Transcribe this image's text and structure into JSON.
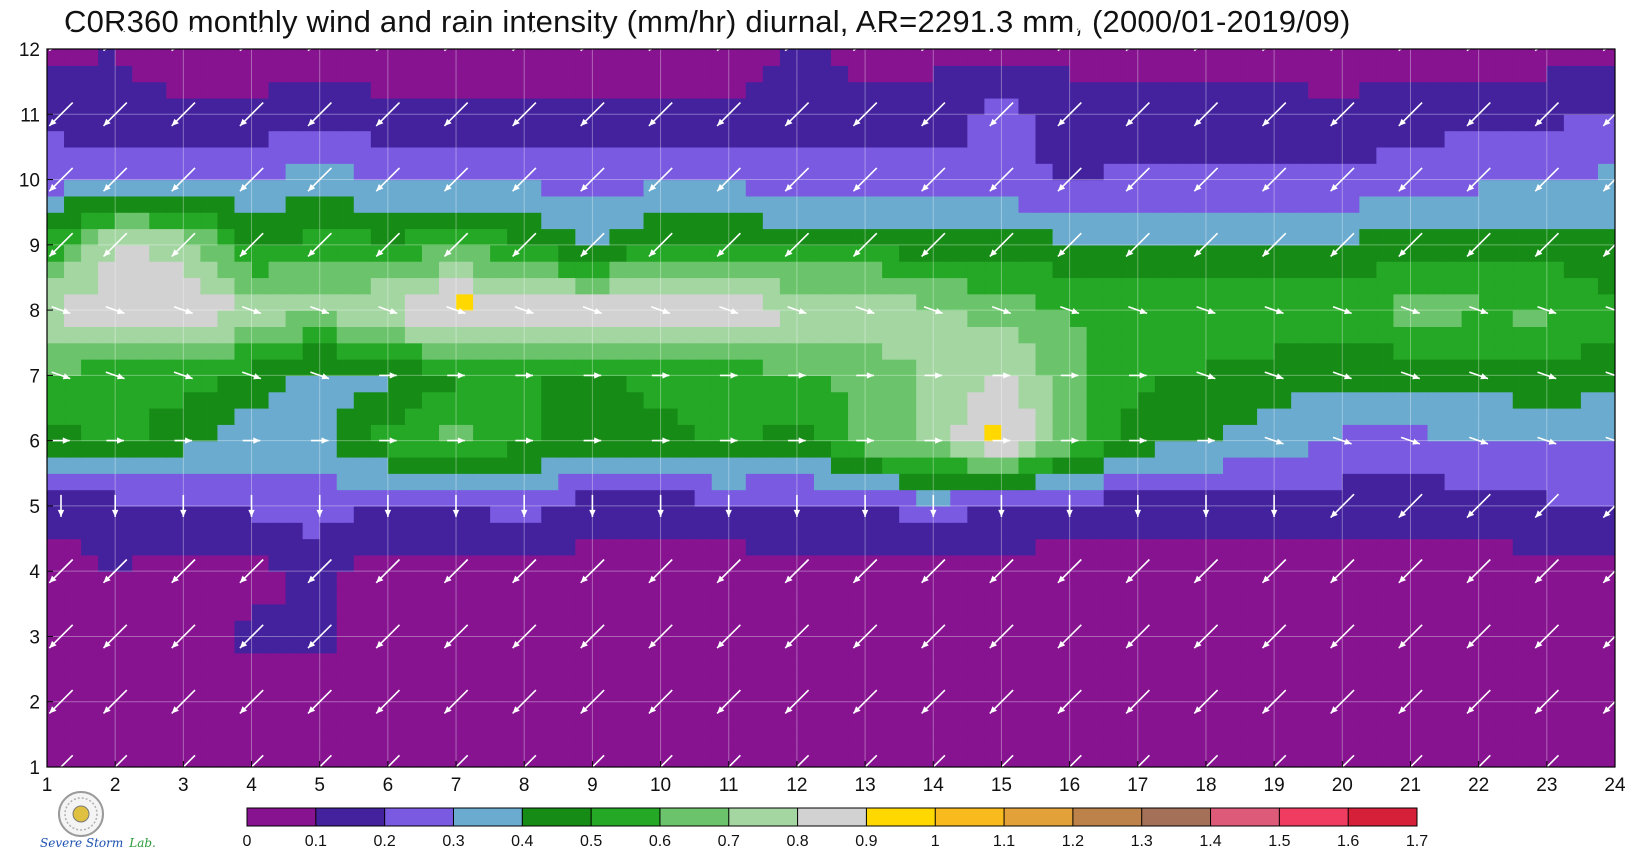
{
  "title": "C0R360 monthly wind and rain intensity (mm/hr) diurnal, AR=2291.3 mm, (2000/01-2019/09)",
  "logo": {
    "line1": "Severe Storm",
    "line2": "Lab.",
    "icon": "seal-icon"
  },
  "colors": {
    "levels": [
      "#871391",
      "#44229e",
      "#7a5ae0",
      "#6aabcf",
      "#168b16",
      "#25a825",
      "#6bc46b",
      "#a4d6a2",
      "#d2d2d2",
      "#ffd800",
      "#f8ba1c",
      "#e3a13a",
      "#bd8249",
      "#a57058",
      "#dd5a78",
      "#f13c62",
      "#d6203a"
    ],
    "contour": "#f6a800",
    "arrow": "#ffffff"
  },
  "chart_data": {
    "type": "heatmap",
    "title": "C0R360 monthly wind and rain intensity (mm/hr) diurnal, AR=2291.3 mm, (2000/01-2019/09)",
    "xlabel": "",
    "ylabel": "",
    "x": [
      1,
      2,
      3,
      4,
      5,
      6,
      7,
      8,
      9,
      10,
      11,
      12,
      13,
      14,
      15,
      16,
      17,
      18,
      19,
      20,
      21,
      22,
      23,
      24
    ],
    "y": [
      1,
      2,
      3,
      4,
      5,
      6,
      7,
      8,
      9,
      10,
      11,
      12
    ],
    "xlim": [
      1,
      24
    ],
    "ylim": [
      1,
      12
    ],
    "grid": true,
    "colorbar": {
      "ticks": [
        "0",
        "0.1",
        "0.2",
        "0.3",
        "0.4",
        "0.5",
        "0.6",
        "0.7",
        "0.8",
        "0.9",
        "1",
        "1.1",
        "1.2",
        "1.3",
        "1.4",
        "1.5",
        "1.6",
        "1.7"
      ]
    },
    "rain_rate_mm_hr": [
      [
        0.05,
        0.05,
        0.05,
        0.05,
        0.05,
        0.05,
        0.05,
        0.05,
        0.05,
        0.05,
        0.05,
        0.05,
        0.05,
        0.05,
        0.05,
        0.05,
        0.05,
        0.05,
        0.05,
        0.05,
        0.05,
        0.05,
        0.05,
        0.05
      ],
      [
        0.1,
        0.05,
        0.05,
        0.05,
        0.05,
        0.05,
        0.05,
        0.05,
        0.05,
        0.05,
        0.05,
        0.05,
        0.05,
        0.05,
        0.05,
        0.05,
        0.05,
        0.05,
        0.05,
        0.05,
        0.05,
        0.05,
        0.05,
        0.05
      ],
      [
        0.05,
        0.05,
        0.05,
        0.12,
        0.12,
        0.05,
        0.05,
        0.05,
        0.05,
        0.05,
        0.05,
        0.05,
        0.05,
        0.05,
        0.05,
        0.05,
        0.05,
        0.05,
        0.05,
        0.05,
        0.05,
        0.05,
        0.05,
        0.05
      ],
      [
        0.05,
        0.1,
        0.06,
        0.06,
        0.12,
        0.06,
        0.06,
        0.06,
        0.06,
        0.05,
        0.06,
        0.06,
        0.06,
        0.06,
        0.06,
        0.06,
        0.06,
        0.06,
        0.06,
        0.06,
        0.06,
        0.06,
        0.06,
        0.06
      ],
      [
        0.15,
        0.15,
        0.18,
        0.22,
        0.26,
        0.18,
        0.2,
        0.25,
        0.15,
        0.15,
        0.16,
        0.18,
        0.2,
        0.25,
        0.18,
        0.15,
        0.15,
        0.15,
        0.16,
        0.15,
        0.14,
        0.15,
        0.18,
        0.22
      ],
      [
        0.42,
        0.55,
        0.42,
        0.35,
        0.35,
        0.55,
        0.65,
        0.52,
        0.45,
        0.45,
        0.55,
        0.45,
        0.65,
        0.72,
        0.95,
        0.65,
        0.45,
        0.4,
        0.35,
        0.28,
        0.28,
        0.3,
        0.32,
        0.28
      ],
      [
        0.62,
        0.52,
        0.56,
        0.45,
        0.35,
        0.38,
        0.48,
        0.52,
        0.45,
        0.55,
        0.55,
        0.58,
        0.62,
        0.72,
        0.82,
        0.62,
        0.52,
        0.48,
        0.45,
        0.42,
        0.42,
        0.43,
        0.48,
        0.45
      ],
      [
        0.82,
        0.85,
        0.92,
        0.78,
        0.72,
        0.82,
        0.96,
        0.88,
        0.88,
        0.95,
        0.88,
        0.82,
        0.82,
        0.72,
        0.65,
        0.6,
        0.58,
        0.62,
        0.58,
        0.55,
        0.65,
        0.62,
        0.62,
        0.52
      ],
      [
        0.52,
        0.82,
        0.75,
        0.48,
        0.55,
        0.52,
        0.58,
        0.52,
        0.36,
        0.52,
        0.48,
        0.48,
        0.48,
        0.45,
        0.45,
        0.42,
        0.42,
        0.42,
        0.42,
        0.42,
        0.45,
        0.45,
        0.45,
        0.42
      ],
      [
        0.25,
        0.3,
        0.3,
        0.3,
        0.35,
        0.3,
        0.28,
        0.28,
        0.25,
        0.28,
        0.28,
        0.25,
        0.25,
        0.25,
        0.22,
        0.2,
        0.22,
        0.22,
        0.22,
        0.22,
        0.25,
        0.28,
        0.3,
        0.32
      ],
      [
        0.18,
        0.12,
        0.12,
        0.12,
        0.15,
        0.12,
        0.12,
        0.12,
        0.12,
        0.12,
        0.12,
        0.12,
        0.12,
        0.12,
        0.25,
        0.12,
        0.12,
        0.12,
        0.12,
        0.12,
        0.15,
        0.18,
        0.18,
        0.22
      ],
      [
        0.08,
        0.1,
        0.05,
        0.05,
        0.05,
        0.05,
        0.05,
        0.05,
        0.05,
        0.05,
        0.05,
        0.12,
        0.08,
        0.08,
        0.08,
        0.08,
        0.08,
        0.08,
        0.08,
        0.05,
        0.05,
        0.05,
        0.05,
        0.05
      ]
    ],
    "wind_vectors_direction": [
      [
        "sw",
        "sw",
        "sw",
        "sw",
        "sw",
        "sw",
        "sw",
        "sw",
        "sw",
        "sw",
        "sw",
        "sw",
        "sw",
        "sw",
        "sw",
        "sw",
        "sw",
        "sw",
        "sw",
        "sw",
        "sw",
        "sw",
        "sw",
        "sw"
      ],
      [
        "sw",
        "sw",
        "sw",
        "sw",
        "sw",
        "sw",
        "sw",
        "sw",
        "sw",
        "sw",
        "sw",
        "sw",
        "sw",
        "sw",
        "sw",
        "sw",
        "sw",
        "sw",
        "sw",
        "sw",
        "sw",
        "sw",
        "sw",
        "sw"
      ],
      [
        "sw",
        "sw",
        "sw",
        "sw",
        "sw",
        "sw",
        "sw",
        "sw",
        "sw",
        "sw",
        "sw",
        "sw",
        "sw",
        "sw",
        "sw",
        "sw",
        "sw",
        "sw",
        "sw",
        "sw",
        "sw",
        "sw",
        "sw",
        "sw"
      ],
      [
        "sw",
        "sw",
        "sw",
        "sw",
        "sw",
        "sw",
        "sw",
        "sw",
        "sw",
        "sw",
        "sw",
        "sw",
        "sw",
        "sw",
        "sw",
        "sw",
        "sw",
        "sw",
        "sw",
        "sw",
        "sw",
        "sw",
        "sw",
        "sw"
      ],
      [
        "s",
        "s",
        "s",
        "s",
        "s",
        "s",
        "s",
        "s",
        "s",
        "s",
        "s",
        "s",
        "s",
        "s",
        "s",
        "s",
        "s",
        "s",
        "s",
        "sw",
        "sw",
        "sw",
        "sw",
        "sw"
      ],
      [
        "e",
        "e",
        "e",
        "e",
        "e",
        "e",
        "e",
        "e",
        "e",
        "e",
        "e",
        "e",
        "e",
        "e",
        "e",
        "e",
        "e",
        "e",
        "se",
        "se",
        "se",
        "se",
        "se",
        "se"
      ],
      [
        "se",
        "se",
        "se",
        "se",
        "se",
        "e",
        "e",
        "e",
        "e",
        "e",
        "e",
        "e",
        "e",
        "e",
        "e",
        "e",
        "e",
        "se",
        "se",
        "se",
        "se",
        "se",
        "se",
        "se"
      ],
      [
        "se",
        "se",
        "se",
        "se",
        "se",
        "se",
        "se",
        "se",
        "se",
        "se",
        "se",
        "se",
        "se",
        "se",
        "se",
        "se",
        "se",
        "se",
        "se",
        "se",
        "se",
        "se",
        "se",
        "se"
      ],
      [
        "sw",
        "sw",
        "sw",
        "sw",
        "sw",
        "sw",
        "sw",
        "sw",
        "sw",
        "sw",
        "sw",
        "sw",
        "sw",
        "sw",
        "sw",
        "sw",
        "sw",
        "sw",
        "sw",
        "sw",
        "sw",
        "sw",
        "sw",
        "sw"
      ],
      [
        "sw",
        "sw",
        "sw",
        "sw",
        "sw",
        "sw",
        "sw",
        "sw",
        "sw",
        "sw",
        "sw",
        "sw",
        "sw",
        "sw",
        "sw",
        "sw",
        "sw",
        "sw",
        "sw",
        "sw",
        "sw",
        "sw",
        "sw",
        "sw"
      ],
      [
        "sw",
        "sw",
        "sw",
        "sw",
        "sw",
        "sw",
        "sw",
        "sw",
        "sw",
        "sw",
        "sw",
        "sw",
        "sw",
        "sw",
        "sw",
        "sw",
        "sw",
        "sw",
        "sw",
        "sw",
        "sw",
        "sw",
        "sw",
        "sw"
      ],
      [
        "sw",
        "sw",
        "sw",
        "sw",
        "sw",
        "sw",
        "sw",
        "sw",
        "sw",
        "sw",
        "sw",
        "sw",
        "sw",
        "sw",
        "sw",
        "sw",
        "sw",
        "sw",
        "sw",
        "sw",
        "sw",
        "sw",
        "sw",
        "sw"
      ]
    ]
  }
}
